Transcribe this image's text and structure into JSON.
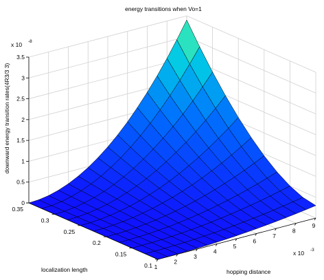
{
  "chart_data": {
    "type": "surface",
    "title": "energy transitions when Vo=1",
    "xlabel": "hopping  distance",
    "ylabel": "localization length",
    "zlabel": "downward energy transition rates(4R3/3  3)",
    "x_exponent": "x 10",
    "x_exponent_power": "-3",
    "z_exponent": "x 10",
    "z_exponent_power": "-8",
    "x_ticks": [
      "1",
      "2",
      "3",
      "4",
      "5",
      "6",
      "7",
      "8",
      "9"
    ],
    "y_ticks": [
      "0.1",
      "0.15",
      "0.2",
      "0.25",
      "0.3",
      "0.35"
    ],
    "z_ticks": [
      "0",
      "0.5",
      "1",
      "1.5",
      "2",
      "2.5",
      "3",
      "3.5"
    ],
    "xlim": [
      1,
      9
    ],
    "ylim": [
      0.1,
      0.35
    ],
    "zlim": [
      0,
      3.5
    ],
    "grid": true,
    "colormap": "winter-like (blue at low values, green at peak)",
    "surface_samples": {
      "note": "approximate values read from plot, z in units of 1e-8",
      "at_x9_y0.35": 3.4,
      "at_x9_y0.1": 0.3,
      "at_x1_y0.35": 0.0,
      "at_x1_y0.1": 0.0
    }
  },
  "colors": {
    "low": "#1010ff",
    "mid": "#0090ff",
    "high": "#50ffa0",
    "grid": "#d0d0d0",
    "axis": "#000000"
  }
}
